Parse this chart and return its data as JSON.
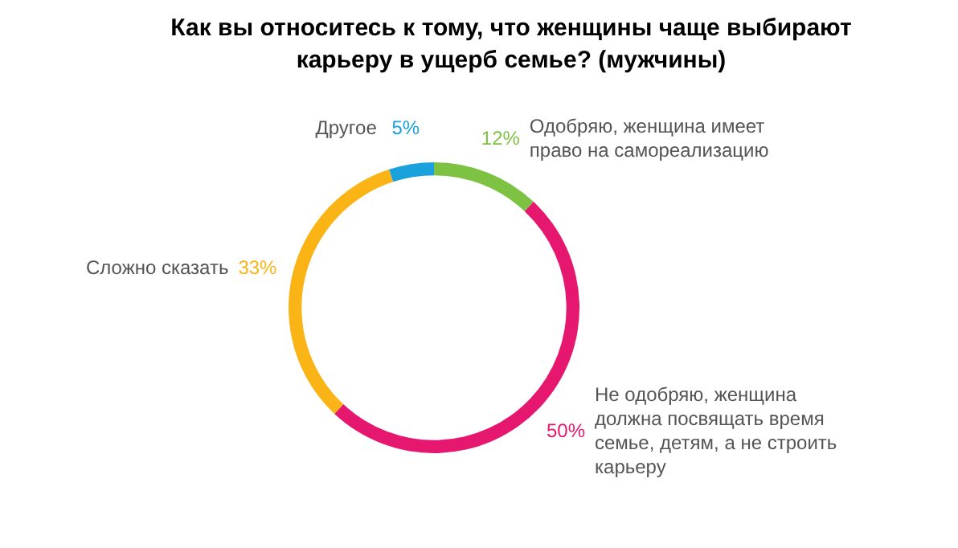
{
  "chart_data": {
    "type": "donut",
    "title": "Как вы относитесь к тому, что женщины чаще выбирают карьеру в ущерб семье? (мужчины)",
    "categories": [
      "Одобряю, женщина имеет право на самореализацию",
      "Не одобряю, женщина должна посвящать время семье, детям, а не строить карьеру",
      "Сложно сказать",
      "Другое"
    ],
    "values": [
      12,
      50,
      33,
      5
    ],
    "value_labels": [
      "12%",
      "50%",
      "33%",
      "5%"
    ],
    "colors": [
      "#7dc242",
      "#e5176f",
      "#fbb415",
      "#1ba1dc"
    ],
    "legend": false
  }
}
